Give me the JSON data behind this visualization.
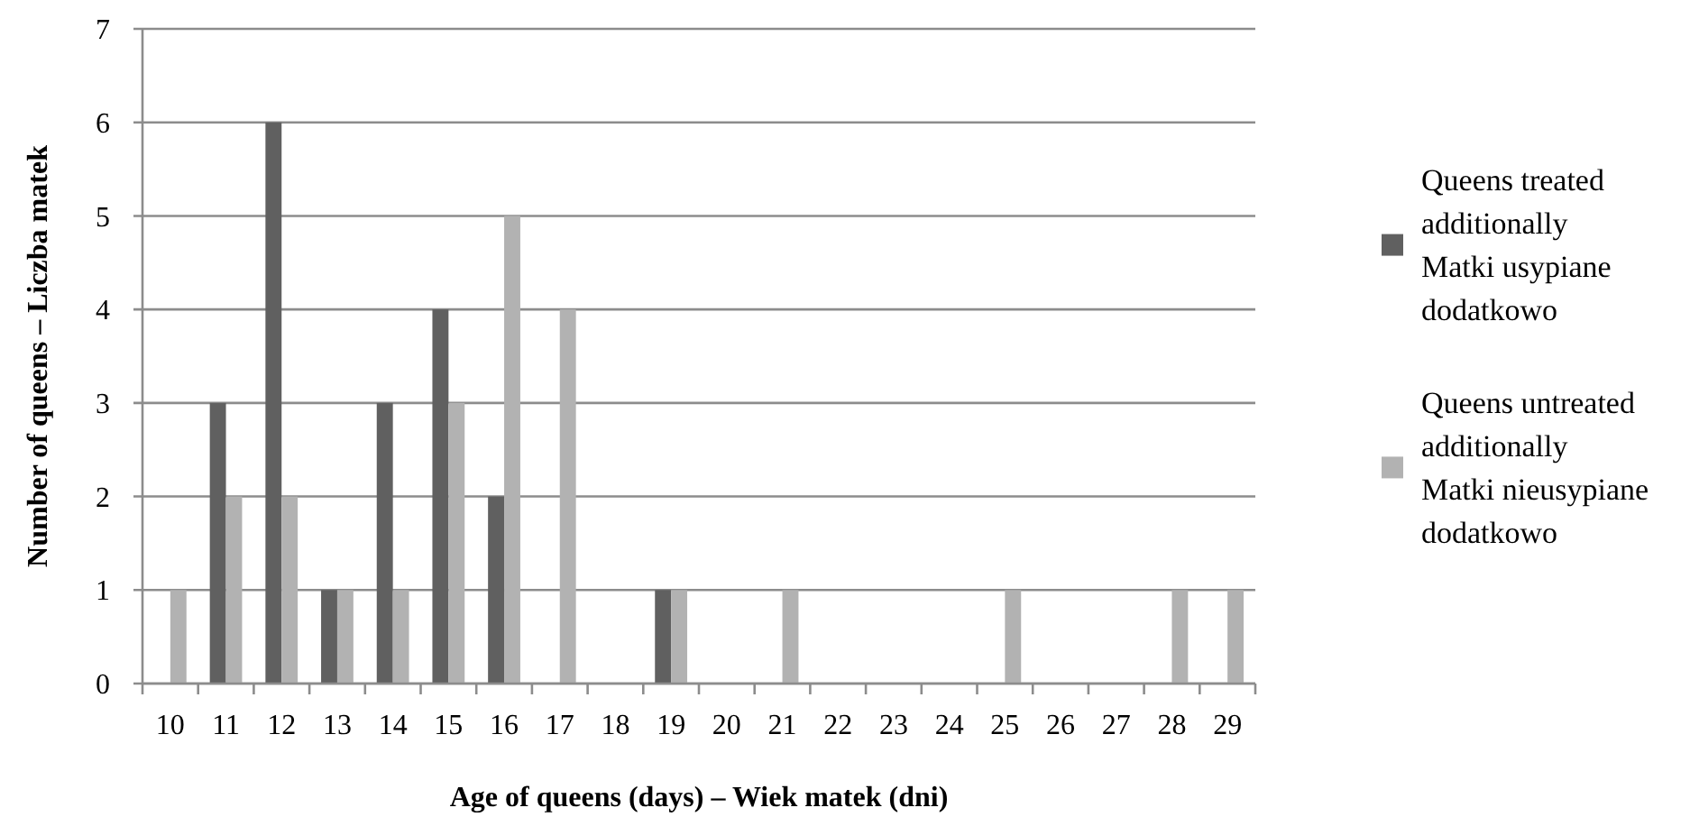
{
  "chart_data": {
    "type": "bar",
    "xlabel": "Age of queens (days) – Wiek matek (dni)",
    "ylabel": "Number of queens – Liczba matek",
    "categories": [
      "10",
      "11",
      "12",
      "13",
      "14",
      "15",
      "16",
      "17",
      "18",
      "19",
      "20",
      "21",
      "22",
      "23",
      "24",
      "25",
      "26",
      "27",
      "28",
      "29"
    ],
    "series": [
      {
        "name": "Queens treated additionally Matki usypiane dodatkowo",
        "color": "#606060",
        "values": [
          0,
          3,
          6,
          1,
          3,
          4,
          2,
          0,
          0,
          1,
          0,
          0,
          0,
          0,
          0,
          0,
          0,
          0,
          0,
          0
        ]
      },
      {
        "name": "Queens untreated additionally Matki nieusypiane dodatkowo",
        "color": "#b2b2b2",
        "values": [
          1,
          2,
          2,
          1,
          1,
          3,
          5,
          4,
          0,
          1,
          0,
          1,
          0,
          0,
          0,
          1,
          0,
          0,
          1,
          1
        ]
      }
    ],
    "ylim": [
      0,
      7
    ],
    "yticks": [
      0,
      1,
      2,
      3,
      4,
      5,
      6,
      7
    ],
    "grid": "y",
    "legend": "right"
  }
}
